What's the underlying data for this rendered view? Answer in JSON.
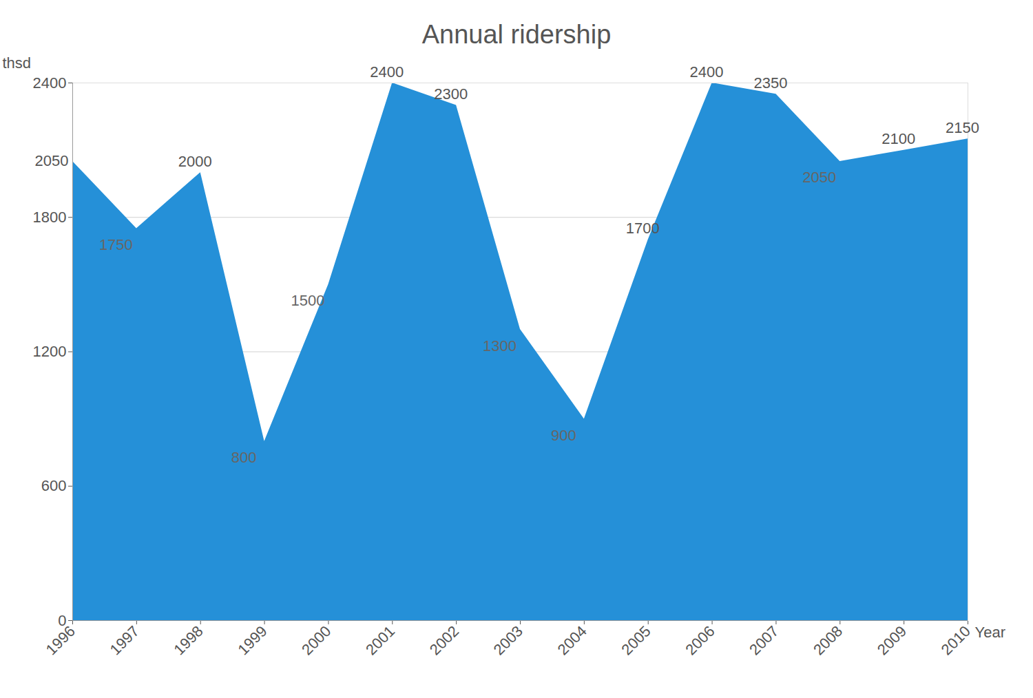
{
  "chart_data": {
    "type": "area",
    "title": "Annual ridership",
    "xlabel": "Year",
    "ylabel": "thsd",
    "x": [
      1996,
      1997,
      1998,
      1999,
      2000,
      2001,
      2002,
      2003,
      2004,
      2005,
      2006,
      2007,
      2008,
      2009,
      2010
    ],
    "values": [
      2050,
      1750,
      2000,
      800,
      1500,
      2400,
      2300,
      1300,
      900,
      1700,
      2400,
      2350,
      2050,
      2100,
      2150
    ],
    "color": "#2590d8",
    "xlim": [
      1996,
      2010
    ],
    "xticks": [
      1996,
      1997,
      1998,
      1999,
      2000,
      2001,
      2002,
      2003,
      2004,
      2005,
      2006,
      2007,
      2008,
      2009,
      2010
    ],
    "ylim": [
      0,
      2400
    ],
    "yticks": [
      0,
      600,
      1200,
      1800,
      2400
    ],
    "grid": true,
    "data_labels": true
  }
}
